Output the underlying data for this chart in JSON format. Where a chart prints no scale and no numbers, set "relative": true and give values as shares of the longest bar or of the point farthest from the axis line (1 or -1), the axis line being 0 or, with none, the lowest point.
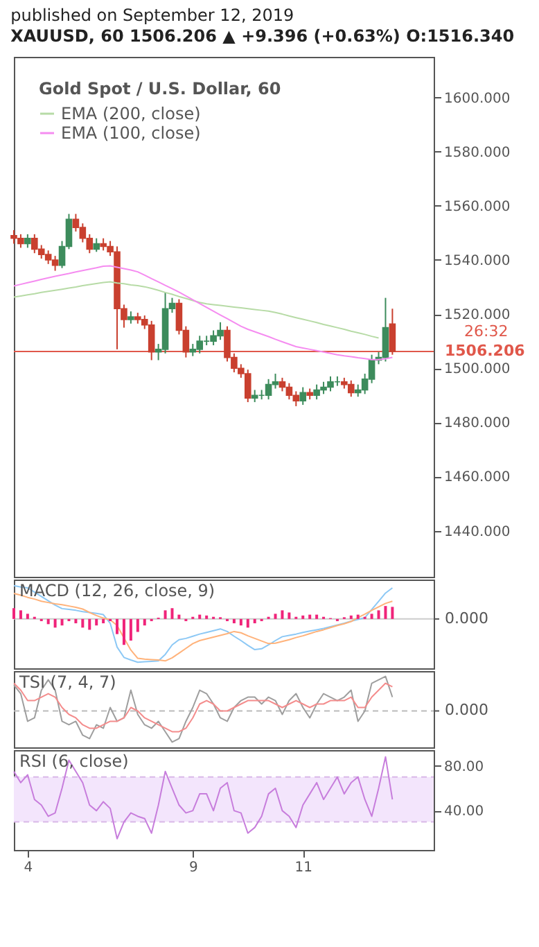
{
  "chart_data": [
    {
      "type": "candlestick",
      "title": "published on September 12, 2019",
      "subtitle": "XAUUSD, 60  1506.206 ▲ +9.396 (+0.63%)  O:1516.340",
      "legend_title": "Gold Spot / U.S. Dollar, 60",
      "legend": "top left",
      "tick_labels": "y",
      "categories": [
        null,
        null,
        "4",
        null,
        null,
        null,
        null,
        null,
        null,
        null,
        null,
        null,
        null,
        null,
        null,
        null,
        null,
        null,
        null,
        null,
        null,
        null,
        null,
        null,
        null,
        null,
        "9",
        null,
        null,
        null,
        null,
        null,
        null,
        null,
        null,
        null,
        null,
        null,
        null,
        null,
        null,
        null,
        "11",
        null,
        null,
        null,
        null,
        null,
        null,
        null,
        null,
        null,
        null,
        null,
        null,
        null,
        null,
        null,
        null,
        null,
        null,
        null
      ],
      "ohlc": [
        [
          1549,
          1551,
          1546,
          1548
        ],
        [
          1548,
          1549.5,
          1544.5,
          1546
        ],
        [
          1546,
          1549.5,
          1544.5,
          1548
        ],
        [
          1548,
          1549.5,
          1542.5,
          1544
        ],
        [
          1544,
          1545.5,
          1540.5,
          1542
        ],
        [
          1542,
          1543.5,
          1538.5,
          1540
        ],
        [
          1540,
          1541.5,
          1536,
          1538
        ],
        [
          1538,
          1547,
          1537,
          1545
        ],
        [
          1545,
          1557,
          1544,
          1555
        ],
        [
          1555,
          1557,
          1550.5,
          1552
        ],
        [
          1552,
          1553.5,
          1546.5,
          1548
        ],
        [
          1548,
          1549.5,
          1542.5,
          1544
        ],
        [
          1544,
          1548,
          1543,
          1546
        ],
        [
          1546,
          1548,
          1543.5,
          1545
        ],
        [
          1545,
          1547,
          1541.5,
          1543
        ],
        [
          1543,
          1545,
          1507,
          1522
        ],
        [
          1522,
          1523.5,
          1515,
          1518
        ],
        [
          1518,
          1521,
          1516.5,
          1519
        ],
        [
          1519,
          1520.5,
          1516.5,
          1518
        ],
        [
          1518,
          1519.5,
          1514.5,
          1516
        ],
        [
          1516,
          1517.5,
          1503,
          1506
        ],
        [
          1506,
          1509,
          1503,
          1507
        ],
        [
          1507,
          1528,
          1505.5,
          1522
        ],
        [
          1522,
          1526,
          1520.5,
          1524
        ],
        [
          1524,
          1525.5,
          1512.5,
          1514
        ],
        [
          1514,
          1515.5,
          1504,
          1506
        ],
        [
          1506,
          1509,
          1504.5,
          1507
        ],
        [
          1507,
          1512,
          1505.5,
          1510
        ],
        [
          1510,
          1512,
          1508.5,
          1510
        ],
        [
          1510,
          1514,
          1508.5,
          1512
        ],
        [
          1512,
          1517,
          1510.5,
          1514
        ],
        [
          1514,
          1515.5,
          1502.5,
          1504
        ],
        [
          1504,
          1505.5,
          1498.5,
          1500
        ],
        [
          1500,
          1501.5,
          1496.5,
          1498
        ],
        [
          1498,
          1499.5,
          1487.5,
          1489
        ],
        [
          1489,
          1492,
          1487.5,
          1490
        ],
        [
          1490,
          1492,
          1488.5,
          1490
        ],
        [
          1490,
          1496,
          1488.5,
          1494
        ],
        [
          1494,
          1498,
          1492.5,
          1495
        ],
        [
          1495,
          1496.5,
          1491.5,
          1493
        ],
        [
          1493,
          1494.5,
          1488.5,
          1490
        ],
        [
          1490,
          1491.5,
          1486,
          1488
        ],
        [
          1488,
          1493,
          1486.5,
          1491
        ],
        [
          1491,
          1492.5,
          1488.5,
          1490
        ],
        [
          1490,
          1494,
          1488.5,
          1492
        ],
        [
          1492,
          1495,
          1490.5,
          1493
        ],
        [
          1493,
          1497,
          1491.5,
          1495
        ],
        [
          1495,
          1497,
          1493.5,
          1495
        ],
        [
          1495,
          1496.5,
          1492.5,
          1494
        ],
        [
          1494,
          1495.5,
          1489.5,
          1491
        ],
        [
          1491,
          1494,
          1489.5,
          1492
        ],
        [
          1492,
          1498,
          1490.5,
          1496
        ],
        [
          1496,
          1505,
          1494.5,
          1503
        ],
        [
          1503,
          1506,
          1501.5,
          1504
        ],
        [
          1504,
          1526,
          1502.5,
          1515
        ],
        [
          1516.34,
          1522,
          1505,
          1506.206
        ],
        null,
        null,
        null,
        null,
        null,
        null
      ],
      "series": [
        {
          "name": "EMA (200, close)",
          "type": "line",
          "color": "#b7dba6",
          "values": [
            1526.3,
            1526.7,
            1527.1,
            1527.5,
            1528.0,
            1528.4,
            1528.8,
            1529.2,
            1529.6,
            1530.0,
            1530.5,
            1530.9,
            1531.3,
            1531.7,
            1531.9,
            1531.5,
            1531.2,
            1530.8,
            1530.5,
            1530.1,
            1529.5,
            1528.8,
            1528.0,
            1527.3,
            1526.5,
            1525.8,
            1525.0,
            1524.3,
            1523.8,
            1523.5,
            1523.2,
            1522.9,
            1522.6,
            1522.3,
            1522.0,
            1521.7,
            1521.4,
            1521.1,
            1520.6,
            1520.0,
            1519.3,
            1518.7,
            1518.1,
            1517.5,
            1516.9,
            1516.2,
            1515.6,
            1515.0,
            1514.4,
            1513.7,
            1513.1,
            1512.5,
            1511.8,
            1511.2,
            null,
            null,
            null,
            null,
            null,
            null,
            null,
            null
          ]
        },
        {
          "name": "EMA (100, close)",
          "type": "line",
          "color": "#f58cf0",
          "values": [
            1530.4,
            1531.0,
            1531.6,
            1532.2,
            1532.8,
            1533.4,
            1534.0,
            1534.5,
            1535.0,
            1535.6,
            1536.1,
            1536.6,
            1537.1,
            1537.7,
            1537.8,
            1537.3,
            1536.8,
            1536.3,
            1535.6,
            1534.4,
            1533.1,
            1531.9,
            1530.6,
            1529.4,
            1528.1,
            1526.7,
            1525.3,
            1523.9,
            1522.5,
            1521.1,
            1519.7,
            1518.3,
            1516.9,
            1515.5,
            1514.4,
            1513.5,
            1512.6,
            1511.7,
            1510.7,
            1509.8,
            1508.9,
            1508.0,
            1507.5,
            1507.0,
            1506.5,
            1506.0,
            1505.5,
            1505.0,
            1504.6,
            1504.3,
            1503.9,
            1503.6,
            1503.2,
            1503.2,
            1503.5,
            1504.0,
            null,
            null,
            null,
            null,
            null,
            null
          ]
        }
      ],
      "ref_lines": [
        {
          "axis": "y",
          "value": 1506.206,
          "label": "1506.206",
          "color": "#e0574a"
        }
      ],
      "annotations": [
        "26:32"
      ],
      "ylim": [
        1423,
        1615
      ],
      "yticks": [
        {
          "value": 1440,
          "label": "1440.000"
        },
        {
          "value": 1460,
          "label": "1460.000"
        },
        {
          "value": 1480,
          "label": "1480.000"
        },
        {
          "value": 1500,
          "label": "1500.000"
        },
        {
          "value": 1520,
          "label": "1520.000"
        },
        {
          "value": 1540,
          "label": "1540.000"
        },
        {
          "value": 1560,
          "label": "1560.000"
        },
        {
          "value": 1580,
          "label": "1580.000"
        },
        {
          "value": 1600,
          "label": "1600.000"
        }
      ]
    },
    {
      "type": "bar",
      "title": "MACD (12, 26, close, 9)",
      "relative": true,
      "tick_labels": false,
      "categories": [
        null,
        null,
        "4",
        null,
        null,
        null,
        null,
        null,
        null,
        null,
        null,
        null,
        null,
        null,
        null,
        null,
        null,
        null,
        null,
        null,
        null,
        null,
        null,
        null,
        null,
        null,
        "9",
        null,
        null,
        null,
        null,
        null,
        null,
        null,
        null,
        null,
        null,
        null,
        null,
        null,
        null,
        null,
        "11",
        null,
        null,
        null,
        null,
        null,
        null,
        null,
        null,
        null,
        null,
        null,
        null,
        null,
        null,
        null,
        null,
        null,
        null,
        null
      ],
      "series": [
        {
          "type": "bar",
          "color": "#f0247a",
          "values": [
            0.25,
            0.2,
            0.12,
            0.05,
            -0.05,
            -0.12,
            -0.2,
            -0.15,
            -0.05,
            -0.1,
            -0.2,
            -0.25,
            -0.15,
            -0.1,
            -0.05,
            -0.35,
            -0.6,
            -0.5,
            -0.3,
            -0.15,
            -0.05,
            0.03,
            0.2,
            0.25,
            0.1,
            -0.05,
            0.05,
            0.1,
            0.08,
            0.05,
            0.04,
            -0.05,
            -0.1,
            -0.15,
            -0.2,
            -0.1,
            -0.05,
            0.05,
            0.12,
            0.2,
            0.15,
            0.05,
            0.08,
            0.1,
            0.1,
            0.05,
            0.02,
            -0.05,
            0.04,
            0.08,
            0.1,
            0.05,
            0.12,
            0.2,
            0.3,
            0.28,
            null,
            null,
            null,
            null,
            null,
            null
          ]
        },
        {
          "type": "line",
          "color": "#8cc8f5",
          "values": [
            0.77,
            0.74,
            0.72,
            0.62,
            0.52,
            0.42,
            0.32,
            0.24,
            0.22,
            0.2,
            0.17,
            0.15,
            0.13,
            0.1,
            -0.1,
            -0.65,
            -0.89,
            -0.95,
            -1.0,
            -0.99,
            -0.98,
            -0.97,
            -0.82,
            -0.6,
            -0.48,
            -0.45,
            -0.4,
            -0.35,
            -0.31,
            -0.27,
            -0.23,
            -0.29,
            -0.4,
            -0.5,
            -0.61,
            -0.71,
            -0.69,
            -0.6,
            -0.5,
            -0.41,
            -0.38,
            -0.35,
            -0.31,
            -0.28,
            -0.25,
            -0.22,
            -0.18,
            -0.14,
            -0.1,
            -0.05,
            -0.01,
            0.03,
            0.22,
            0.41,
            0.6,
            0.72,
            null,
            null,
            null,
            null,
            null,
            null
          ]
        },
        {
          "type": "line",
          "color": "#ffb27a",
          "values": [
            0.59,
            0.55,
            0.5,
            0.46,
            0.41,
            0.38,
            0.35,
            0.33,
            0.3,
            0.27,
            0.23,
            0.15,
            0.08,
            0.02,
            -0.02,
            -0.15,
            -0.44,
            -0.72,
            -0.91,
            -0.93,
            -0.94,
            -0.95,
            -0.97,
            -0.9,
            -0.79,
            -0.68,
            -0.57,
            -0.5,
            -0.46,
            -0.42,
            -0.38,
            -0.34,
            -0.29,
            -0.32,
            -0.39,
            -0.45,
            -0.51,
            -0.57,
            -0.56,
            -0.52,
            -0.48,
            -0.43,
            -0.39,
            -0.34,
            -0.29,
            -0.25,
            -0.2,
            -0.15,
            -0.11,
            -0.06,
            0.03,
            0.11,
            0.2,
            0.28,
            0.36,
            0.41,
            null,
            null,
            null,
            null,
            null,
            null
          ]
        }
      ],
      "ref_lines": [
        {
          "axis": "y",
          "value": 0,
          "label": "0.000",
          "color": "#cccccc"
        }
      ]
    },
    {
      "type": "line",
      "title": "TSI (7, 4, 7)",
      "relative": true,
      "tick_labels": false,
      "categories": [
        null,
        null,
        "4",
        null,
        null,
        null,
        null,
        null,
        null,
        null,
        null,
        null,
        null,
        null,
        null,
        null,
        null,
        null,
        null,
        null,
        null,
        null,
        null,
        null,
        null,
        null,
        "9",
        null,
        null,
        null,
        null,
        null,
        null,
        null,
        null,
        null,
        null,
        null,
        null,
        null,
        null,
        null,
        "11",
        null,
        null,
        null,
        null,
        null,
        null,
        null,
        null,
        null,
        null,
        null,
        null,
        null,
        null,
        null,
        null,
        null,
        null,
        null
      ],
      "series": [
        {
          "color": "#9e9e9e",
          "values": [
            0.75,
            0.5,
            -0.3,
            -0.2,
            0.6,
            0.9,
            0.6,
            -0.3,
            -0.4,
            -0.3,
            -0.7,
            -0.8,
            -0.4,
            -0.5,
            0.1,
            -0.3,
            -0.2,
            0.6,
            -0.1,
            -0.4,
            -0.5,
            -0.3,
            -0.6,
            -0.9,
            -0.8,
            -0.3,
            0.1,
            0.6,
            0.5,
            0.2,
            -0.2,
            -0.3,
            0.1,
            0.3,
            0.4,
            0.4,
            0.2,
            0.4,
            0.3,
            -0.1,
            0.3,
            0.5,
            0.1,
            -0.2,
            0.2,
            0.5,
            0.4,
            0.3,
            0.4,
            0.6,
            -0.3,
            0.0,
            0.8,
            0.9,
            1.0,
            0.4,
            null,
            null,
            null,
            null,
            null,
            null
          ]
        },
        {
          "color": "#f48c8c",
          "values": [
            0.8,
            0.6,
            0.3,
            0.3,
            0.4,
            0.5,
            0.4,
            0.1,
            -0.1,
            -0.2,
            -0.4,
            -0.5,
            -0.5,
            -0.4,
            -0.3,
            -0.3,
            -0.2,
            0.1,
            0.0,
            -0.2,
            -0.3,
            -0.4,
            -0.5,
            -0.6,
            -0.6,
            -0.5,
            -0.2,
            0.2,
            0.3,
            0.2,
            0.0,
            0.0,
            0.1,
            0.2,
            0.3,
            0.3,
            0.3,
            0.3,
            0.2,
            0.1,
            0.2,
            0.3,
            0.2,
            0.1,
            0.2,
            0.2,
            0.3,
            0.3,
            0.3,
            0.4,
            0.1,
            0.1,
            0.4,
            0.6,
            0.8,
            0.7,
            null,
            null,
            null,
            null,
            null,
            null
          ]
        }
      ],
      "ref_lines": [
        {
          "axis": "y",
          "value": 0,
          "label": "0.000",
          "color": "#bbbbbb",
          "line_style": "dashed"
        }
      ]
    },
    {
      "type": "line",
      "title": "RSI (6, close)",
      "ylim": [
        5,
        94
      ],
      "yticks": [
        {
          "value": 40,
          "label": "40.00"
        },
        {
          "value": 80,
          "label": "80.00"
        }
      ],
      "categories": [
        null,
        null,
        "4",
        null,
        null,
        null,
        null,
        null,
        null,
        null,
        null,
        null,
        null,
        null,
        null,
        null,
        null,
        null,
        null,
        null,
        null,
        null,
        null,
        null,
        null,
        null,
        "9",
        null,
        null,
        null,
        null,
        null,
        null,
        null,
        null,
        null,
        null,
        null,
        null,
        null,
        null,
        null,
        "11",
        null,
        null,
        null,
        null,
        null,
        null,
        null,
        null,
        null,
        null,
        null,
        null,
        null,
        null,
        null,
        null,
        null,
        null,
        null
      ],
      "series": [
        {
          "color": "#c77ddc",
          "values": [
            75,
            65,
            72,
            50,
            45,
            35,
            38,
            60,
            85,
            75,
            65,
            45,
            40,
            48,
            42,
            15,
            30,
            38,
            35,
            33,
            20,
            45,
            75,
            60,
            45,
            38,
            40,
            55,
            55,
            40,
            60,
            65,
            40,
            38,
            20,
            25,
            35,
            55,
            60,
            40,
            35,
            25,
            45,
            55,
            65,
            50,
            60,
            70,
            55,
            65,
            70,
            50,
            35,
            60,
            88,
            50,
            null,
            null,
            null,
            null,
            null,
            null
          ]
        }
      ],
      "bands": [
        {
          "axis": "y",
          "from": 30,
          "to": 70,
          "color": "#f3e5fc"
        }
      ],
      "ref_lines": [
        {
          "axis": "y",
          "value": 30,
          "color": "#d9b8e8",
          "line_style": "dashed"
        },
        {
          "axis": "y",
          "value": 70,
          "color": "#d9b8e8",
          "line_style": "dashed"
        }
      ]
    }
  ]
}
